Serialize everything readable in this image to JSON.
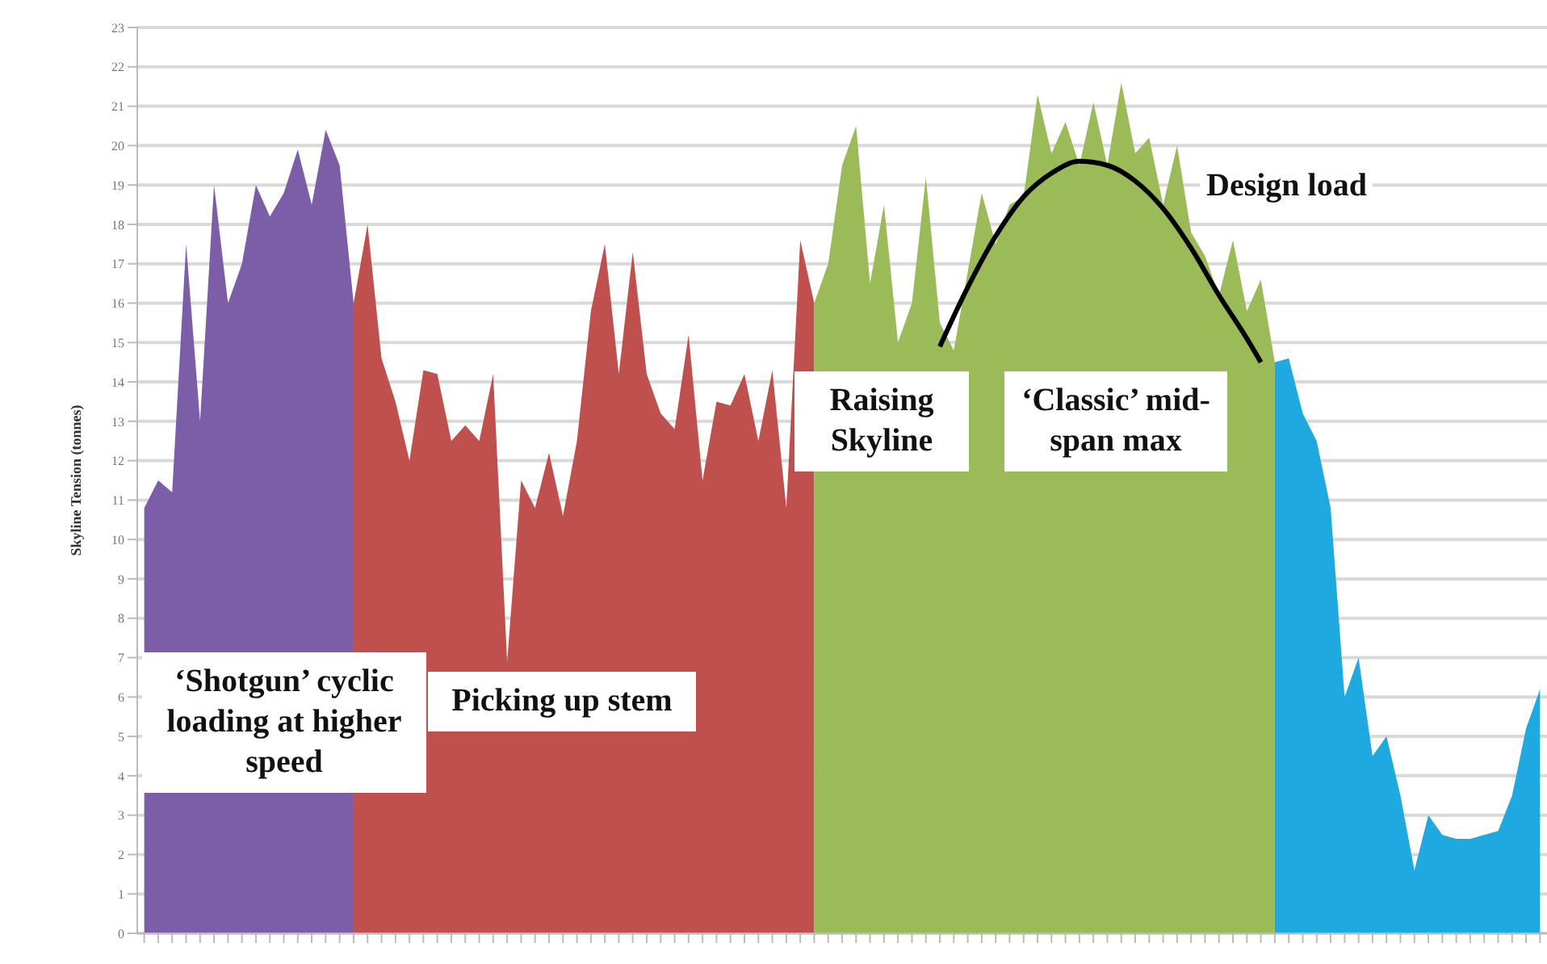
{
  "chart_data": {
    "type": "area",
    "ylabel": "Skyline Tension (tonnes)",
    "categories": [
      null,
      null,
      null,
      null,
      null,
      null,
      null,
      null,
      null,
      null,
      null,
      null,
      null,
      null,
      null,
      null,
      null,
      null,
      null,
      null,
      null,
      null,
      null,
      null,
      null,
      null,
      null,
      null,
      null,
      null,
      null,
      null,
      null,
      null,
      null,
      null,
      null,
      null,
      null,
      null,
      null,
      null,
      null,
      null,
      null,
      null,
      null,
      null,
      null,
      null,
      null,
      null,
      null,
      null,
      null,
      null,
      null,
      null,
      null,
      null,
      null,
      null,
      null,
      null,
      null,
      null,
      null,
      null,
      null,
      null,
      null,
      null,
      null,
      null,
      null,
      null,
      null,
      null,
      null,
      null,
      null,
      null,
      null,
      null,
      null,
      null,
      null,
      null,
      null,
      null,
      null,
      null,
      null,
      null,
      null,
      null,
      null,
      null,
      null,
      null,
      null
    ],
    "series": [
      {
        "color": "#7b5ea7",
        "values": [
          10.8,
          11.5,
          11.2,
          17.5,
          13,
          19,
          16,
          17,
          19,
          18.2,
          18.8,
          19.9,
          18.5,
          20.4,
          19.5,
          16,
          null,
          null,
          null,
          null,
          null,
          null,
          null,
          null,
          null,
          null,
          null,
          null,
          null,
          null,
          null,
          null,
          null,
          null,
          null,
          null,
          null,
          null,
          null,
          null,
          null,
          null,
          null,
          null,
          null,
          null,
          null,
          null,
          null,
          null,
          null,
          null,
          null,
          null,
          null,
          null,
          null,
          null,
          null,
          null,
          null,
          null,
          null,
          null,
          null,
          null,
          null,
          null,
          null,
          null,
          null,
          null,
          null,
          null,
          null,
          null,
          null,
          null,
          null,
          null,
          null,
          null,
          null,
          null,
          null,
          null,
          null,
          null,
          null,
          null,
          null,
          null,
          null,
          null,
          null,
          null,
          null,
          null,
          null,
          null,
          null
        ]
      },
      {
        "color": "#c0504d",
        "values": [
          null,
          null,
          null,
          null,
          null,
          null,
          null,
          null,
          null,
          null,
          null,
          null,
          null,
          null,
          null,
          16,
          18,
          14.6,
          13.5,
          12,
          14.3,
          14.2,
          12.5,
          12.9,
          12.5,
          14.2,
          6.9,
          11.5,
          10.8,
          12.2,
          10.6,
          12.5,
          15.8,
          17.5,
          14.2,
          17.3,
          14.2,
          13.2,
          12.8,
          15.2,
          11.5,
          13.5,
          13.4,
          14.2,
          12.5,
          14.3,
          10.8,
          17.6,
          16,
          null,
          null,
          null,
          null,
          null,
          null,
          null,
          null,
          null,
          null,
          null,
          null,
          null,
          null,
          null,
          null,
          null,
          null,
          null,
          null,
          null,
          null,
          null,
          null,
          null,
          null,
          null,
          null,
          null,
          null,
          null,
          null,
          null,
          null,
          null,
          null,
          null,
          null,
          null,
          null,
          null,
          null,
          null,
          null,
          null,
          null,
          null,
          null,
          null,
          null,
          null,
          null
        ]
      },
      {
        "color": "#9bbb59",
        "values": [
          null,
          null,
          null,
          null,
          null,
          null,
          null,
          null,
          null,
          null,
          null,
          null,
          null,
          null,
          null,
          null,
          null,
          null,
          null,
          null,
          null,
          null,
          null,
          null,
          null,
          null,
          null,
          null,
          null,
          null,
          null,
          null,
          null,
          null,
          null,
          null,
          null,
          null,
          null,
          null,
          null,
          null,
          null,
          null,
          null,
          null,
          null,
          null,
          16,
          17,
          19.5,
          20.5,
          16.5,
          18.5,
          15,
          16,
          19.2,
          15.5,
          14.8,
          16.8,
          18.8,
          17.5,
          18.5,
          18.7,
          21.3,
          19.8,
          20.6,
          19.5,
          21.1,
          19.5,
          21.6,
          19.8,
          20.2,
          18.5,
          20,
          17.8,
          17.2,
          16.2,
          17.6,
          15.8,
          16.6,
          14.5,
          null,
          null,
          null,
          null,
          null,
          null,
          null,
          null,
          null,
          null,
          null,
          null,
          null,
          null,
          null,
          null,
          null,
          null,
          null
        ]
      },
      {
        "color": "#1ea9e1",
        "values": [
          null,
          null,
          null,
          null,
          null,
          null,
          null,
          null,
          null,
          null,
          null,
          null,
          null,
          null,
          null,
          null,
          null,
          null,
          null,
          null,
          null,
          null,
          null,
          null,
          null,
          null,
          null,
          null,
          null,
          null,
          null,
          null,
          null,
          null,
          null,
          null,
          null,
          null,
          null,
          null,
          null,
          null,
          null,
          null,
          null,
          null,
          null,
          null,
          null,
          null,
          null,
          null,
          null,
          null,
          null,
          null,
          null,
          null,
          null,
          null,
          null,
          null,
          null,
          null,
          null,
          null,
          null,
          null,
          null,
          null,
          null,
          null,
          null,
          null,
          null,
          null,
          null,
          null,
          null,
          null,
          null,
          14.5,
          14.6,
          13.2,
          12.5,
          10.8,
          6,
          7,
          4.5,
          5,
          3.5,
          1.6,
          3,
          2.5,
          2.4,
          2.4,
          2.5,
          2.6,
          3.5,
          5.2,
          6.2
        ]
      },
      {
        "type": "line",
        "name": "Design load",
        "color": "#000000",
        "values": [
          null,
          null,
          null,
          null,
          null,
          null,
          null,
          null,
          null,
          null,
          null,
          null,
          null,
          null,
          null,
          null,
          null,
          null,
          null,
          null,
          null,
          null,
          null,
          null,
          null,
          null,
          null,
          null,
          null,
          null,
          null,
          null,
          null,
          null,
          null,
          null,
          null,
          null,
          null,
          null,
          null,
          null,
          null,
          null,
          null,
          null,
          null,
          null,
          null,
          null,
          null,
          null,
          null,
          null,
          null,
          null,
          null,
          14.9,
          null,
          16.4,
          null,
          17.7,
          null,
          18.7,
          null,
          19.3,
          null,
          19.6,
          null,
          19.5,
          null,
          19.1,
          null,
          18.4,
          null,
          17.4,
          null,
          16.2,
          null,
          15.1,
          14.5,
          null,
          null,
          null,
          null,
          null,
          null,
          null,
          null,
          null,
          null,
          null,
          null,
          null,
          null,
          null,
          null,
          null,
          null,
          null,
          null
        ]
      }
    ],
    "ylim": [
      0,
      23
    ],
    "yticks": [
      0,
      1,
      2,
      3,
      4,
      5,
      6,
      7,
      8,
      9,
      10,
      11,
      12,
      13,
      14,
      15,
      16,
      17,
      18,
      19,
      20,
      21,
      22,
      23
    ],
    "grid": "y",
    "legend": false,
    "annotations": [
      "‘Shotgun’ cyclic loading at higher speed",
      "Picking up stem",
      "Raising Skyline",
      "‘Classic’ mid-span max"
    ]
  }
}
